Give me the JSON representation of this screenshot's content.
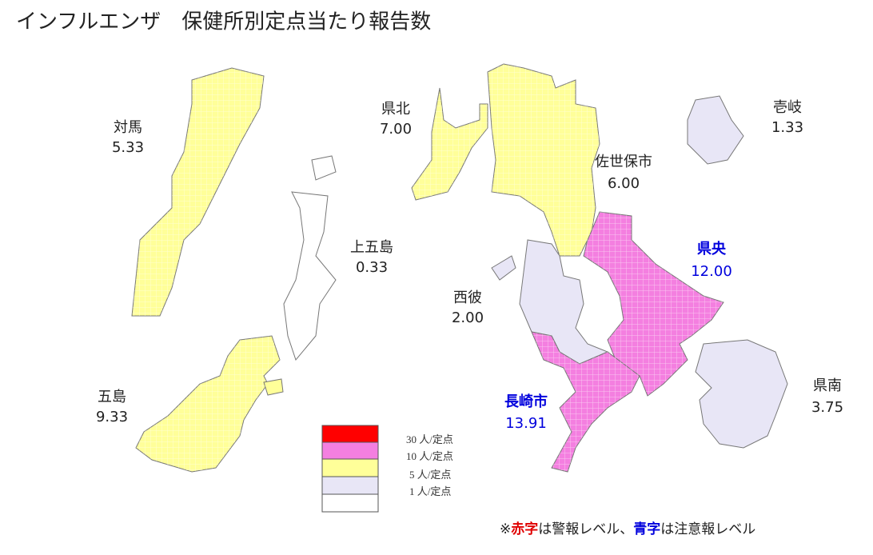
{
  "title": "インフルエンザ　保健所別定点当たり報告数",
  "regions": [
    {
      "name": "対馬",
      "value": "5.33"
    },
    {
      "name": "県北",
      "value": "7.00"
    },
    {
      "name": "上五島",
      "value": "0.33"
    },
    {
      "name": "佐世保市",
      "value": "6.00"
    },
    {
      "name": "壱岐",
      "value": "1.33"
    },
    {
      "name": "県央",
      "value": "12.00"
    },
    {
      "name": "西彼",
      "value": "2.00"
    },
    {
      "name": "長崎市",
      "value": "13.91"
    },
    {
      "name": "県南",
      "value": "3.75"
    },
    {
      "name": "五島",
      "value": "9.33"
    }
  ],
  "legend": [
    "30 人/定点",
    "10 人/定点",
    "5 人/定点",
    "1 人/定点"
  ],
  "footnote": [
    "※",
    "赤字",
    "は警報レベル、",
    "青字",
    "は注意報レベル"
  ]
}
